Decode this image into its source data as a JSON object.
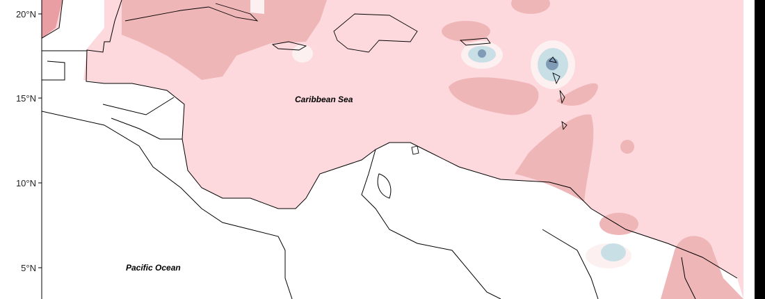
{
  "map": {
    "y_axis_ticks": [
      "20°N",
      "15°N",
      "10°N",
      "5°N"
    ],
    "tick_latitudes": [
      20,
      15,
      10,
      5
    ],
    "labels": {
      "caribbean": "Caribbean Sea",
      "pacific": "Pacific Ocean"
    },
    "colors": {
      "ocean_base": "#fdd9de",
      "positive_high": "#efb6b8",
      "positive_higher": "#e89ea2",
      "neutral": "#fcf0f0",
      "negative_low": "#c9dfe6",
      "negative_high": "#7f9bb5",
      "land": "#ffffff",
      "coast": "#000000"
    }
  }
}
